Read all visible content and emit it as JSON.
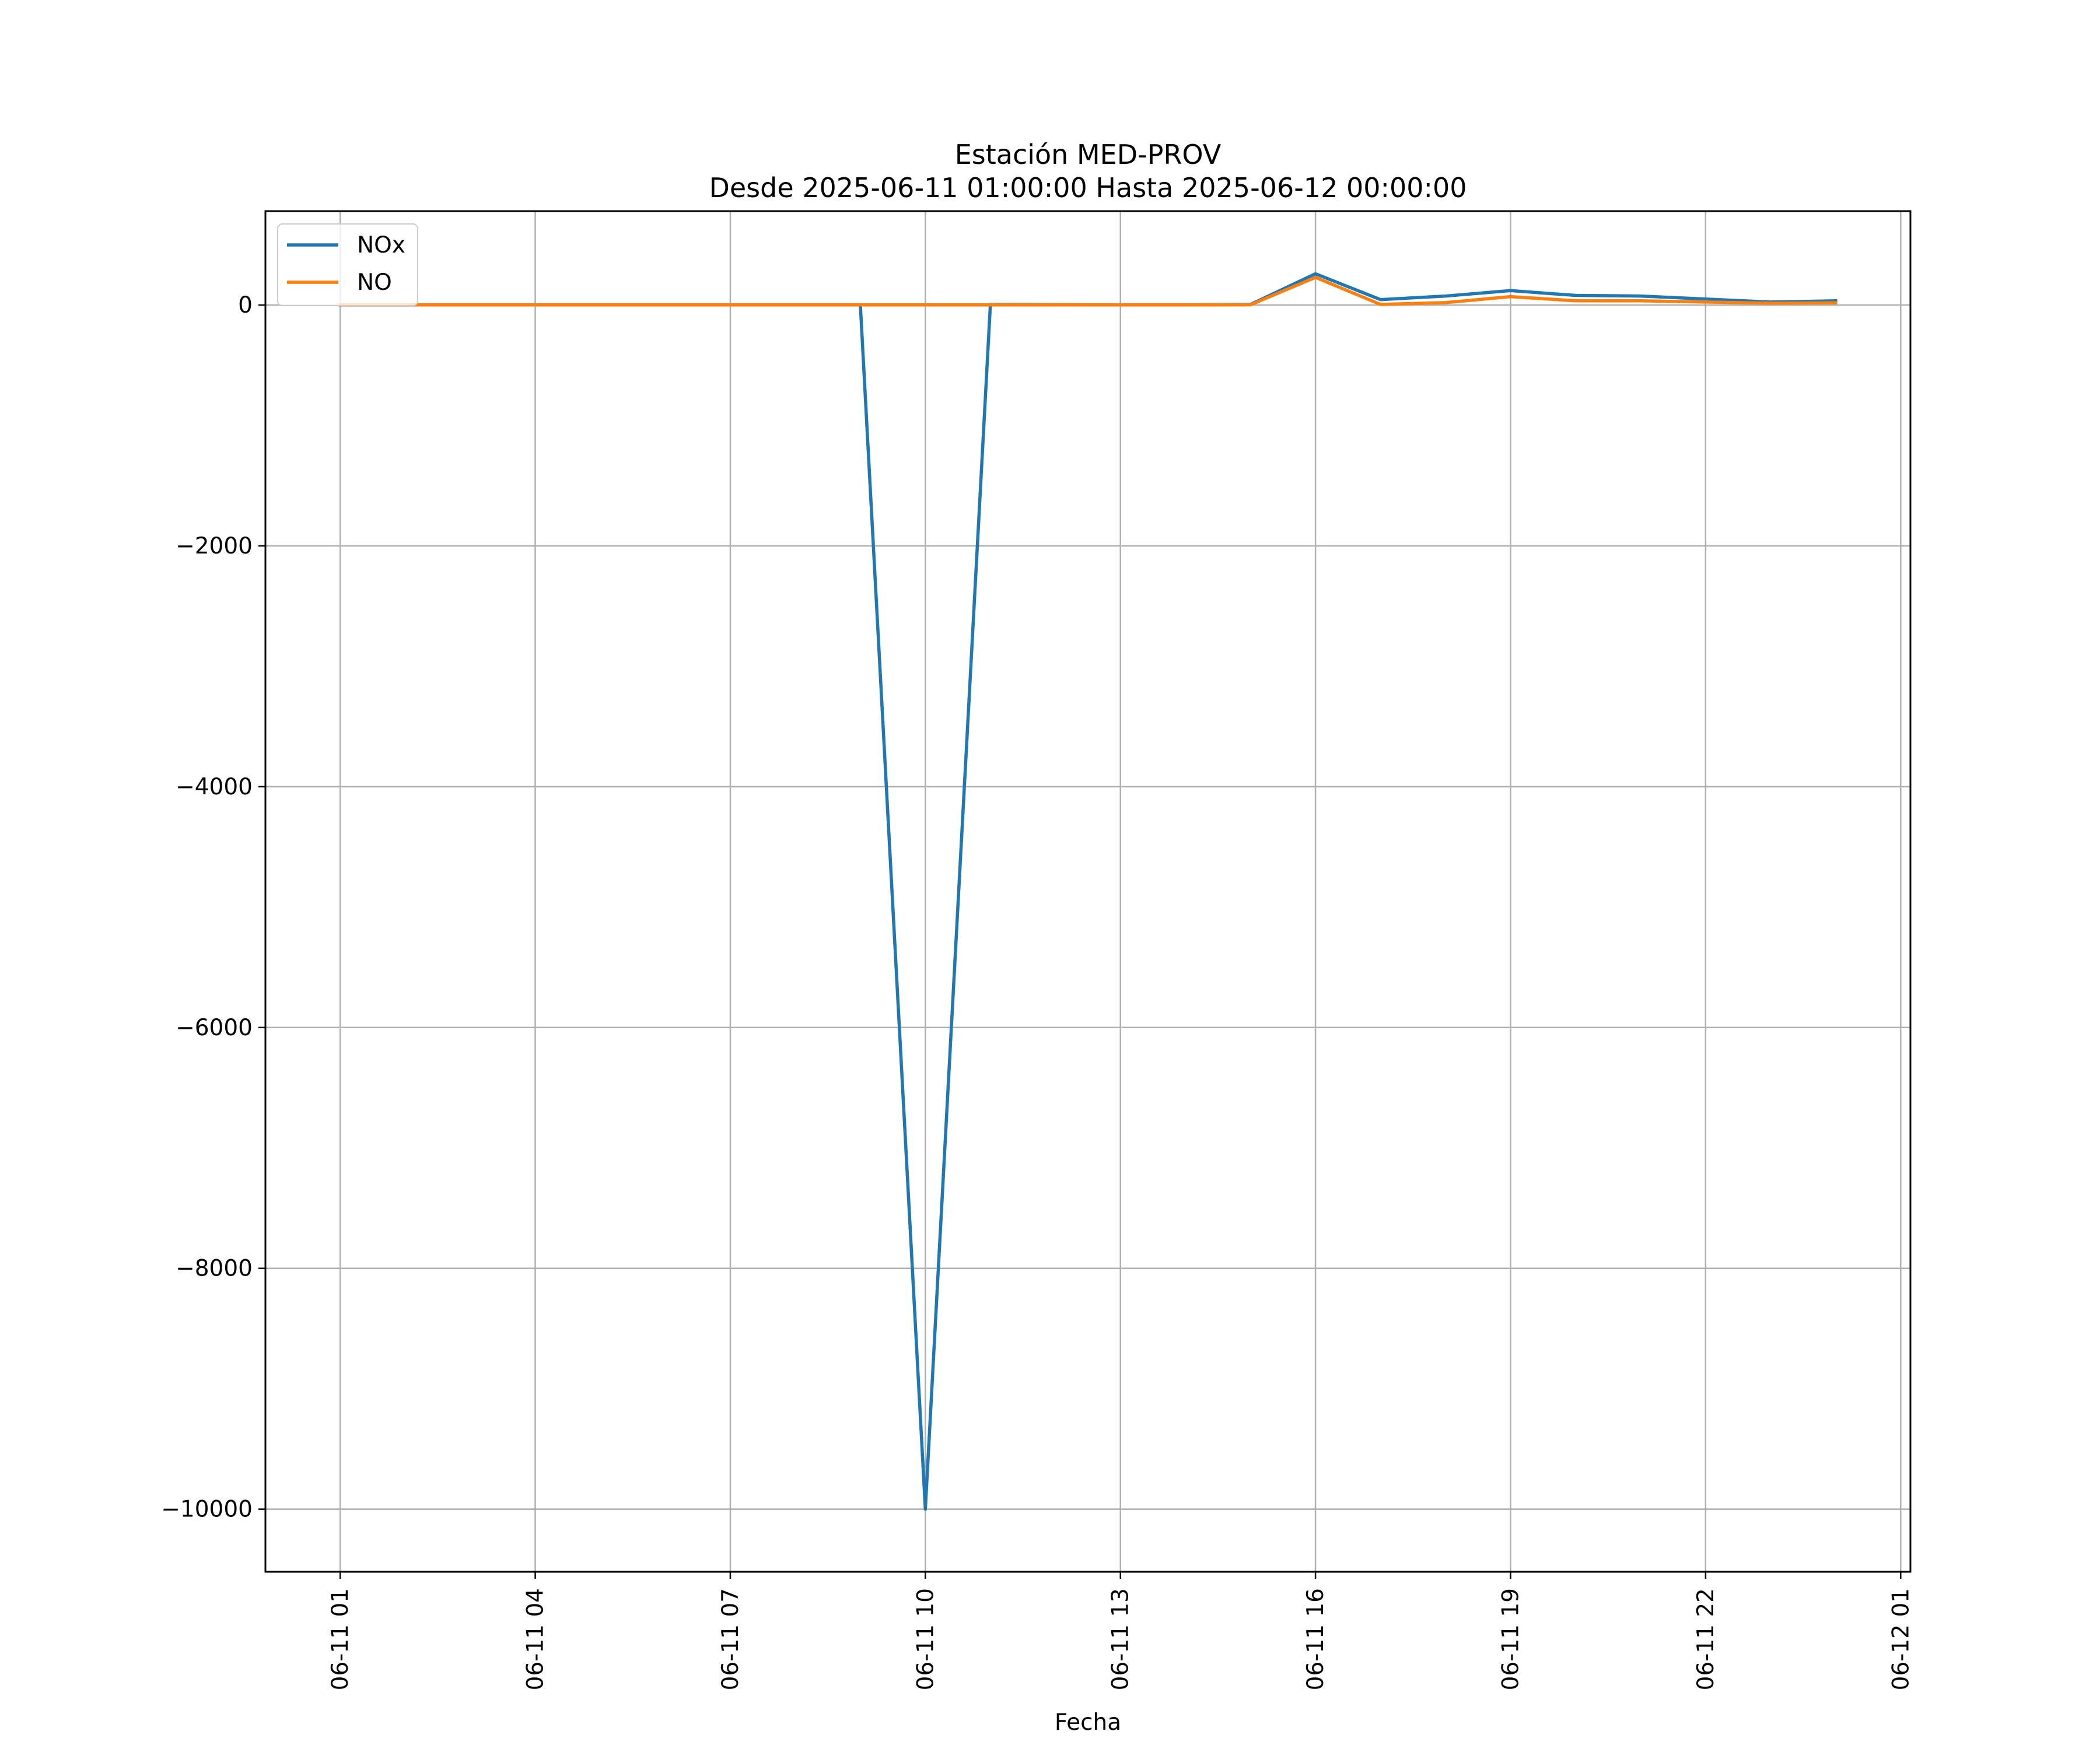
{
  "chart_data": {
    "type": "line",
    "title": "Estación MED-PROV",
    "subtitle": "Desde 2025-06-11 01:00:00 Hasta 2025-06-12 00:00:00",
    "xlabel": "Fecha",
    "ylabel": "",
    "x": [
      "2025-06-11 01:00",
      "2025-06-11 02:00",
      "2025-06-11 03:00",
      "2025-06-11 04:00",
      "2025-06-11 05:00",
      "2025-06-11 06:00",
      "2025-06-11 07:00",
      "2025-06-11 08:00",
      "2025-06-11 09:00",
      "2025-06-11 10:00",
      "2025-06-11 11:00",
      "2025-06-11 12:00",
      "2025-06-11 13:00",
      "2025-06-11 14:00",
      "2025-06-11 15:00",
      "2025-06-11 16:00",
      "2025-06-11 17:00",
      "2025-06-11 18:00",
      "2025-06-11 19:00",
      "2025-06-11 20:00",
      "2025-06-11 21:00",
      "2025-06-11 22:00",
      "2025-06-11 23:00",
      "2025-06-12 00:00"
    ],
    "x_ticks": [
      "06-11 01",
      "06-11 04",
      "06-11 07",
      "06-11 10",
      "06-11 13",
      "06-11 16",
      "06-11 19",
      "06-11 22",
      "06-12 01"
    ],
    "x_tick_hours": [
      1,
      4,
      7,
      10,
      13,
      16,
      19,
      22,
      25
    ],
    "xlim_hours": [
      -0.15,
      25.15
    ],
    "y_ticks": [
      0,
      -2000,
      -4000,
      -6000,
      -8000,
      -10000
    ],
    "ylim": [
      -10520,
      780
    ],
    "grid": true,
    "legend_position": "top-left",
    "series": [
      {
        "name": "NOx",
        "color": "#1f77b4",
        "values": [
          2,
          2,
          2,
          2,
          2,
          2,
          2,
          2,
          2,
          -10000,
          5,
          3,
          2,
          2,
          5,
          260,
          45,
          75,
          120,
          80,
          75,
          50,
          25,
          35
        ]
      },
      {
        "name": "NO",
        "color": "#ff7f0e",
        "values": [
          1,
          1,
          1,
          1,
          1,
          1,
          1,
          1,
          1,
          null,
          1,
          1,
          1,
          1,
          2,
          230,
          5,
          20,
          70,
          35,
          35,
          25,
          15,
          18
        ]
      }
    ]
  }
}
